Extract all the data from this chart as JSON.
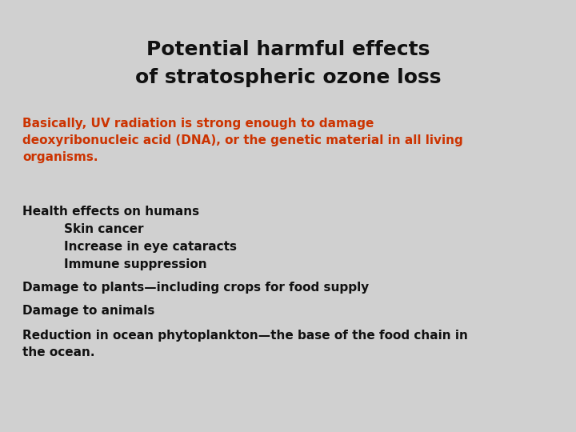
{
  "background_color": "#d0d0d0",
  "title_line1": "Potential harmful effects",
  "title_line2": "of stratospheric ozone loss",
  "title_color": "#111111",
  "title_fontsize": 18,
  "title_fontweight": "bold",
  "red_text": "Basically, UV radiation is strong enough to damage\ndeoxyribonucleic acid (DNA), or the genetic material in all living\norganisms.",
  "red_color": "#cc3300",
  "red_fontsize": 11,
  "red_fontweight": "bold",
  "body_items": [
    {
      "text": "Health effects on humans",
      "indent": 0,
      "color": "#111111"
    },
    {
      "text": "Skin cancer",
      "indent": 1,
      "color": "#111111"
    },
    {
      "text": "Increase in eye cataracts",
      "indent": 1,
      "color": "#111111"
    },
    {
      "text": "Immune suppression",
      "indent": 1,
      "color": "#111111"
    },
    {
      "text": "Damage to plants—including crops for food supply",
      "indent": 0,
      "color": "#111111"
    },
    {
      "text": "Damage to animals",
      "indent": 0,
      "color": "#111111"
    },
    {
      "text": "Reduction in ocean phytoplankton—the base of the food chain in\nthe ocean.",
      "indent": 0,
      "color": "#111111"
    }
  ],
  "body_fontsize": 11,
  "body_fontweight": "bold",
  "fig_width": 7.2,
  "fig_height": 5.4,
  "dpi": 100
}
